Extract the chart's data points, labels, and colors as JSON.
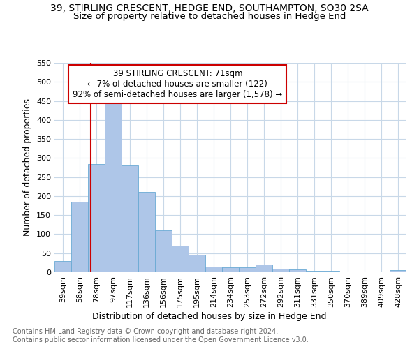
{
  "title": "39, STIRLING CRESCENT, HEDGE END, SOUTHAMPTON, SO30 2SA",
  "subtitle": "Size of property relative to detached houses in Hedge End",
  "xlabel": "Distribution of detached houses by size in Hedge End",
  "ylabel": "Number of detached properties",
  "bar_labels": [
    "39sqm",
    "58sqm",
    "78sqm",
    "97sqm",
    "117sqm",
    "136sqm",
    "156sqm",
    "175sqm",
    "195sqm",
    "214sqm",
    "234sqm",
    "253sqm",
    "272sqm",
    "292sqm",
    "311sqm",
    "331sqm",
    "350sqm",
    "370sqm",
    "389sqm",
    "409sqm",
    "428sqm"
  ],
  "bar_values": [
    30,
    185,
    285,
    450,
    280,
    210,
    110,
    70,
    45,
    15,
    13,
    13,
    20,
    10,
    8,
    3,
    3,
    2,
    2,
    2,
    5
  ],
  "bar_color": "#aec6e8",
  "bar_edge_color": "#6aaad4",
  "vline_x_index": 1.68,
  "vline_color": "#cc0000",
  "annotation_text": "39 STIRLING CRESCENT: 71sqm\n← 7% of detached houses are smaller (122)\n92% of semi-detached houses are larger (1,578) →",
  "annotation_box_color": "#ffffff",
  "annotation_box_edge_color": "#cc0000",
  "ylim": [
    0,
    550
  ],
  "yticks": [
    0,
    50,
    100,
    150,
    200,
    250,
    300,
    350,
    400,
    450,
    500,
    550
  ],
  "footer_text": "Contains HM Land Registry data © Crown copyright and database right 2024.\nContains public sector information licensed under the Open Government Licence v3.0.",
  "bg_color": "#ffffff",
  "grid_color": "#c8d8e8",
  "title_fontsize": 10,
  "subtitle_fontsize": 9.5,
  "xlabel_fontsize": 9,
  "ylabel_fontsize": 9,
  "tick_fontsize": 8,
  "annotation_fontsize": 8.5,
  "footer_fontsize": 7
}
